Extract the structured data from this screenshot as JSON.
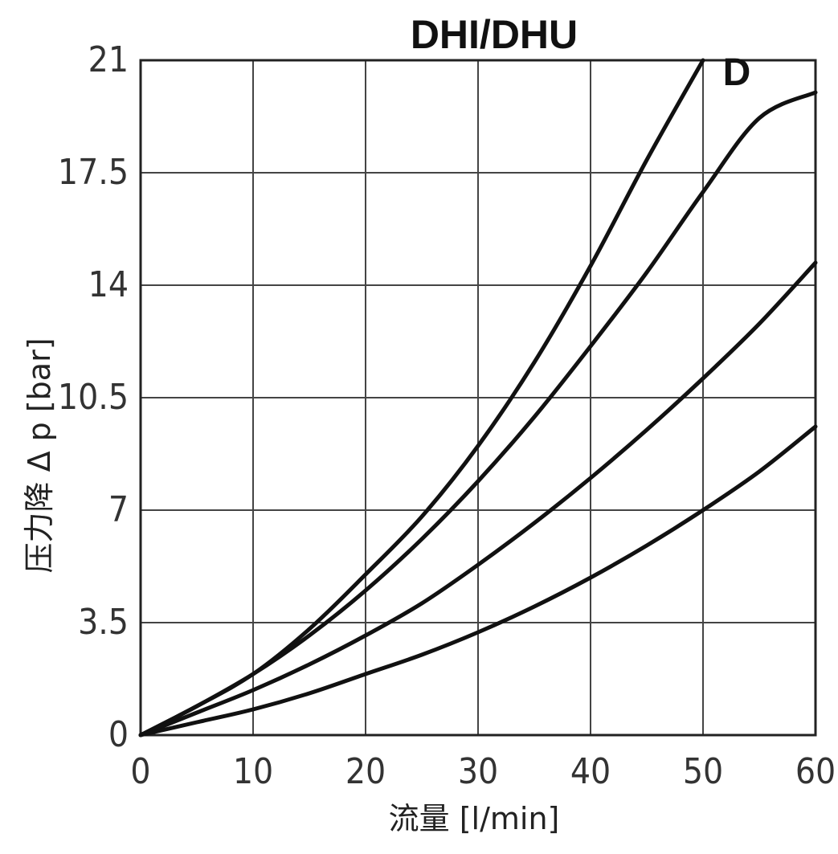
{
  "chart_data": {
    "type": "line",
    "title": "DHI/DHU",
    "xlabel": "流量 [l/min]",
    "ylabel": "压力降 Δ p [bar]",
    "xlim": [
      0,
      60
    ],
    "ylim": [
      0,
      21
    ],
    "x_ticks": [
      "0",
      "10",
      "20",
      "30",
      "40",
      "50",
      "60"
    ],
    "y_ticks": [
      "0",
      "3.5",
      "7",
      "10.5",
      "14",
      "17.5",
      "21"
    ],
    "y_tick_values": [
      0,
      3.5,
      7,
      10.5,
      14,
      17.5,
      21
    ],
    "grid": true,
    "series": [
      {
        "name": "D",
        "x": [
          0,
          5,
          10,
          15,
          20,
          25,
          30,
          35,
          40,
          45,
          50
        ],
        "y": [
          0,
          0.9,
          1.9,
          3.3,
          5.0,
          6.8,
          9.0,
          11.6,
          14.6,
          17.9,
          21.0
        ]
      },
      {
        "x": [
          0,
          5,
          10,
          15,
          20,
          25,
          30,
          35,
          40,
          45,
          50,
          55,
          60
        ],
        "y": [
          0,
          0.9,
          1.9,
          3.1,
          4.5,
          6.1,
          7.9,
          9.9,
          12.1,
          14.4,
          16.9,
          19.2,
          20.0
        ]
      },
      {
        "x": [
          0,
          5,
          10,
          15,
          20,
          25,
          30,
          35,
          40,
          45,
          50,
          55,
          60
        ],
        "y": [
          0,
          0.7,
          1.4,
          2.2,
          3.1,
          4.1,
          5.3,
          6.6,
          8.0,
          9.5,
          11.1,
          12.8,
          14.7
        ]
      },
      {
        "x": [
          0,
          5,
          10,
          15,
          20,
          25,
          30,
          35,
          40,
          45,
          50,
          55,
          60
        ],
        "y": [
          0,
          0.4,
          0.8,
          1.3,
          1.9,
          2.5,
          3.2,
          4.0,
          4.9,
          5.9,
          7.0,
          8.2,
          9.6
        ]
      }
    ]
  }
}
